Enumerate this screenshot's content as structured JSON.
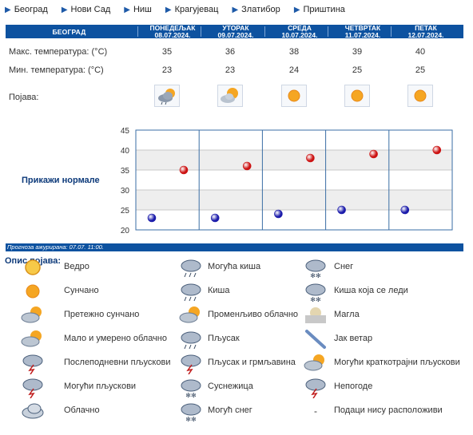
{
  "nav": [
    "Београд",
    "Нови Сад",
    "Ниш",
    "Крагујевац",
    "Златибор",
    "Приштина"
  ],
  "city": "БЕОГРАД",
  "days": [
    {
      "name": "ПОНЕДЕЉАК",
      "date": "08.07.2024.",
      "max": "35",
      "min": "23",
      "icon": "partly-cloudy-rain-icon"
    },
    {
      "name": "УТОРАК",
      "date": "09.07.2024.",
      "max": "36",
      "min": "23",
      "icon": "mostly-sunny-icon"
    },
    {
      "name": "СРЕДА",
      "date": "10.07.2024.",
      "max": "38",
      "min": "24",
      "icon": "sunny-icon"
    },
    {
      "name": "ЧЕТВРТАК",
      "date": "11.07.2024.",
      "max": "39",
      "min": "25",
      "icon": "sunny-icon"
    },
    {
      "name": "ПЕТАК",
      "date": "12.07.2024.",
      "max": "40",
      "min": "25",
      "icon": "sunny-icon"
    }
  ],
  "labels": {
    "max": "Макс. температура: (°C)",
    "min": "Мин. температура: (°C)",
    "phen": "Појава:",
    "normals": "Прикажи нормале",
    "updated": "Прогноза ажурирана:  07.07.  11:00.",
    "legend_title": "Опис појава:"
  },
  "chart_data": {
    "type": "scatter",
    "categories": [
      "08.07.2024.",
      "09.07.2024.",
      "10.07.2024.",
      "11.07.2024.",
      "12.07.2024."
    ],
    "series": [
      {
        "values": [
          35,
          36,
          38,
          39,
          40
        ],
        "color": "#cc1111"
      },
      {
        "values": [
          23,
          23,
          24,
          25,
          25
        ],
        "color": "#1a1aaa"
      }
    ],
    "ylim": [
      20,
      45
    ],
    "yticks": [
      20,
      25,
      30,
      35,
      40,
      45
    ],
    "grid": true
  },
  "legend": [
    {
      "icon": "clear-sky-icon",
      "text": "Ведро"
    },
    {
      "icon": "sunny-icon",
      "text": "Сунчано"
    },
    {
      "icon": "mostly-sunny-icon",
      "text": "Претежно сунчано"
    },
    {
      "icon": "partly-cloudy-icon",
      "text": "Мало и умерено облачно"
    },
    {
      "icon": "afternoon-showers-icon",
      "text": "Послеподневни пљускови"
    },
    {
      "icon": "possible-showers-icon",
      "text": "Могући пљускови"
    },
    {
      "icon": "cloudy-icon",
      "text": "Облачно"
    },
    {
      "icon": "possible-rain-icon",
      "text": "Могућа киша"
    },
    {
      "icon": "rain-icon",
      "text": "Киша"
    },
    {
      "icon": "variable-cloudy-icon",
      "text": "Променљиво облачно"
    },
    {
      "icon": "showers-icon",
      "text": "Пљусак"
    },
    {
      "icon": "thunderstorm-icon",
      "text": "Пљусак и грмљавина"
    },
    {
      "icon": "sleet-icon",
      "text": "Суснежица"
    },
    {
      "icon": "possible-snow-icon",
      "text": "Могућ снег"
    },
    {
      "icon": "snow-icon",
      "text": "Снег"
    },
    {
      "icon": "freezing-rain-icon",
      "text": "Киша која се леди"
    },
    {
      "icon": "fog-icon",
      "text": "Магла"
    },
    {
      "icon": "strong-wind-icon",
      "text": "Јак ветар"
    },
    {
      "icon": "brief-showers-icon",
      "text": "Могући краткотрајни пљускови"
    },
    {
      "icon": "storm-icon",
      "text": "Непогоде"
    },
    {
      "icon": "no-data-icon",
      "text": "Подаци нису расположиви",
      "symbol": "-"
    }
  ]
}
